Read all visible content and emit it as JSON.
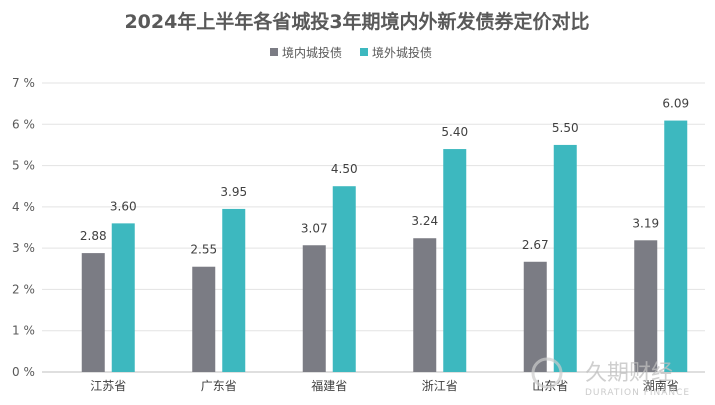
{
  "chart_data": {
    "type": "bar",
    "title": "2024年上半年各省城投3年期境内外新发债券定价对比",
    "xlabel": "",
    "ylabel": "",
    "categories": [
      "江苏省",
      "广东省",
      "福建省",
      "浙江省",
      "山东省",
      "湖南省"
    ],
    "series": [
      {
        "name": "境内城投债",
        "values": [
          2.88,
          2.55,
          3.07,
          3.24,
          2.67,
          3.19
        ],
        "color": "#7b7c84"
      },
      {
        "name": "境外城投债",
        "values": [
          3.6,
          3.95,
          4.5,
          5.4,
          5.5,
          6.09
        ],
        "color": "#3db8bf"
      }
    ],
    "ylim": [
      0,
      7
    ],
    "yticks": [
      "0 %",
      "1 %",
      "2 %",
      "3 %",
      "4 %",
      "5 %",
      "6 %",
      "7 %"
    ],
    "value_labels": [
      [
        "2.88",
        "2.55",
        "3.07",
        "3.24",
        "2.67",
        "3.19"
      ],
      [
        "3.60",
        "3.95",
        "4.50",
        "5.40",
        "5.50",
        "6.09"
      ]
    ],
    "grid": true,
    "legend_position": "top-center"
  },
  "watermark": {
    "cn": "久期财经",
    "en": "DURATION FINANCE"
  }
}
